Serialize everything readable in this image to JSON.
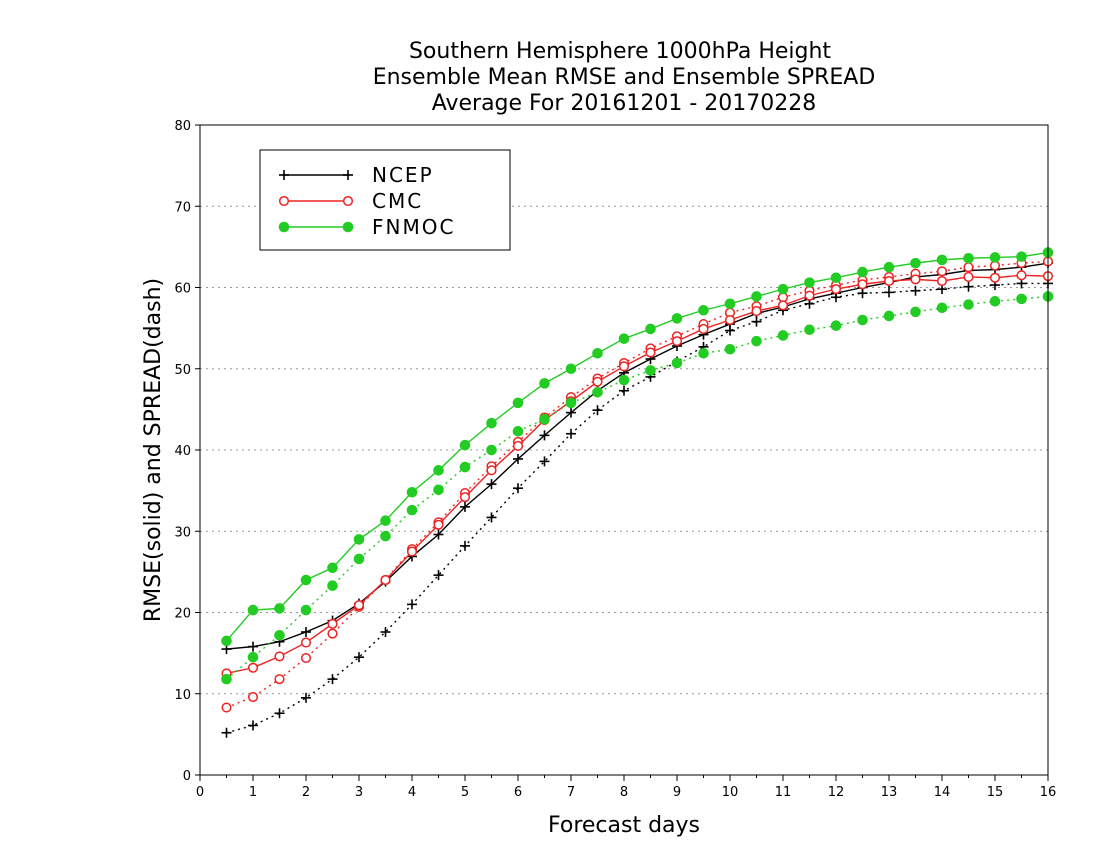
{
  "chart_data": {
    "type": "line",
    "title": [
      "Southern Hemisphere 1000hPa Height",
      "Ensemble Mean RMSE and Ensemble SPREAD",
      "Average For 20161201 - 20170228"
    ],
    "xlabel": "Forecast days",
    "ylabel": "RMSE(solid) and SPREAD(dash)",
    "xlim": [
      0,
      16
    ],
    "ylim": [
      0,
      80
    ],
    "xticks": [
      "0",
      "1",
      "2",
      "3",
      "4",
      "5",
      "6",
      "7",
      "8",
      "9",
      "10",
      "11",
      "12",
      "13",
      "14",
      "15",
      "16"
    ],
    "yticks": [
      "0",
      "10",
      "20",
      "30",
      "40",
      "50",
      "60",
      "70",
      "80"
    ],
    "grid": "horizontal dotted",
    "legend_position": "top-left",
    "x": [
      0.5,
      1,
      1.5,
      2,
      2.5,
      3,
      3.5,
      4,
      4.5,
      5,
      5.5,
      6,
      6.5,
      7,
      7.5,
      8,
      8.5,
      9,
      9.5,
      10,
      10.5,
      11,
      11.5,
      12,
      12.5,
      13,
      13.5,
      14,
      14.5,
      15,
      15.5,
      16
    ],
    "series": [
      {
        "name": "NCEP",
        "color": "#000000",
        "marker": "plus",
        "rmse": [
          15.5,
          15.8,
          16.4,
          17.6,
          19.0,
          21.1,
          23.8,
          26.9,
          29.6,
          33.0,
          35.8,
          38.9,
          41.8,
          44.6,
          47.3,
          49.5,
          51.2,
          52.8,
          54.2,
          55.5,
          56.8,
          57.6,
          58.6,
          59.3,
          60.0,
          60.6,
          61.3,
          61.6,
          62.1,
          62.2,
          62.5,
          63.0
        ],
        "spread": [
          5.2,
          6.1,
          7.6,
          9.5,
          11.8,
          14.5,
          17.6,
          21.0,
          24.6,
          28.2,
          31.7,
          35.3,
          38.6,
          42.0,
          44.9,
          47.3,
          49.0,
          50.9,
          52.7,
          54.7,
          55.8,
          57.2,
          58.0,
          58.8,
          59.3,
          59.4,
          59.6,
          59.8,
          60.1,
          60.3,
          60.5,
          60.5
        ]
      },
      {
        "name": "CMC",
        "color": "#ee2222",
        "marker": "open-circle",
        "rmse": [
          12.5,
          13.2,
          14.6,
          16.3,
          18.6,
          20.9,
          24.0,
          27.5,
          30.8,
          34.2,
          37.5,
          40.5,
          43.7,
          46.0,
          48.4,
          50.3,
          52.0,
          53.4,
          54.9,
          56.0,
          57.1,
          57.8,
          59.0,
          59.8,
          60.4,
          60.8,
          61.0,
          60.8,
          61.3,
          61.2,
          61.5,
          61.4
        ],
        "spread": [
          8.3,
          9.6,
          11.8,
          14.4,
          17.4,
          20.7,
          24.0,
          27.8,
          31.1,
          34.7,
          38.0,
          41.0,
          44.0,
          46.5,
          48.8,
          50.7,
          52.5,
          54.0,
          55.5,
          56.9,
          57.7,
          58.8,
          59.6,
          60.3,
          60.9,
          61.3,
          61.7,
          62.0,
          62.5,
          62.7,
          63.0,
          63.2
        ]
      },
      {
        "name": "FNMOC",
        "color": "#22cc22",
        "marker": "filled-circle",
        "rmse": [
          16.5,
          20.3,
          20.5,
          24.0,
          25.5,
          29.0,
          31.3,
          34.8,
          37.5,
          40.6,
          43.3,
          45.8,
          48.2,
          50.0,
          51.9,
          53.7,
          54.9,
          56.2,
          57.2,
          58.0,
          58.9,
          59.8,
          60.6,
          61.2,
          61.9,
          62.5,
          63.0,
          63.4,
          63.6,
          63.7,
          63.8,
          64.3
        ],
        "spread": [
          11.8,
          14.5,
          17.2,
          20.3,
          23.3,
          26.6,
          29.4,
          32.6,
          35.1,
          37.9,
          40.0,
          42.3,
          43.8,
          45.8,
          47.1,
          48.6,
          49.8,
          50.7,
          51.9,
          52.4,
          53.4,
          54.1,
          54.8,
          55.3,
          56.0,
          56.5,
          57.0,
          57.5,
          57.9,
          58.3,
          58.6,
          58.9
        ]
      }
    ]
  }
}
